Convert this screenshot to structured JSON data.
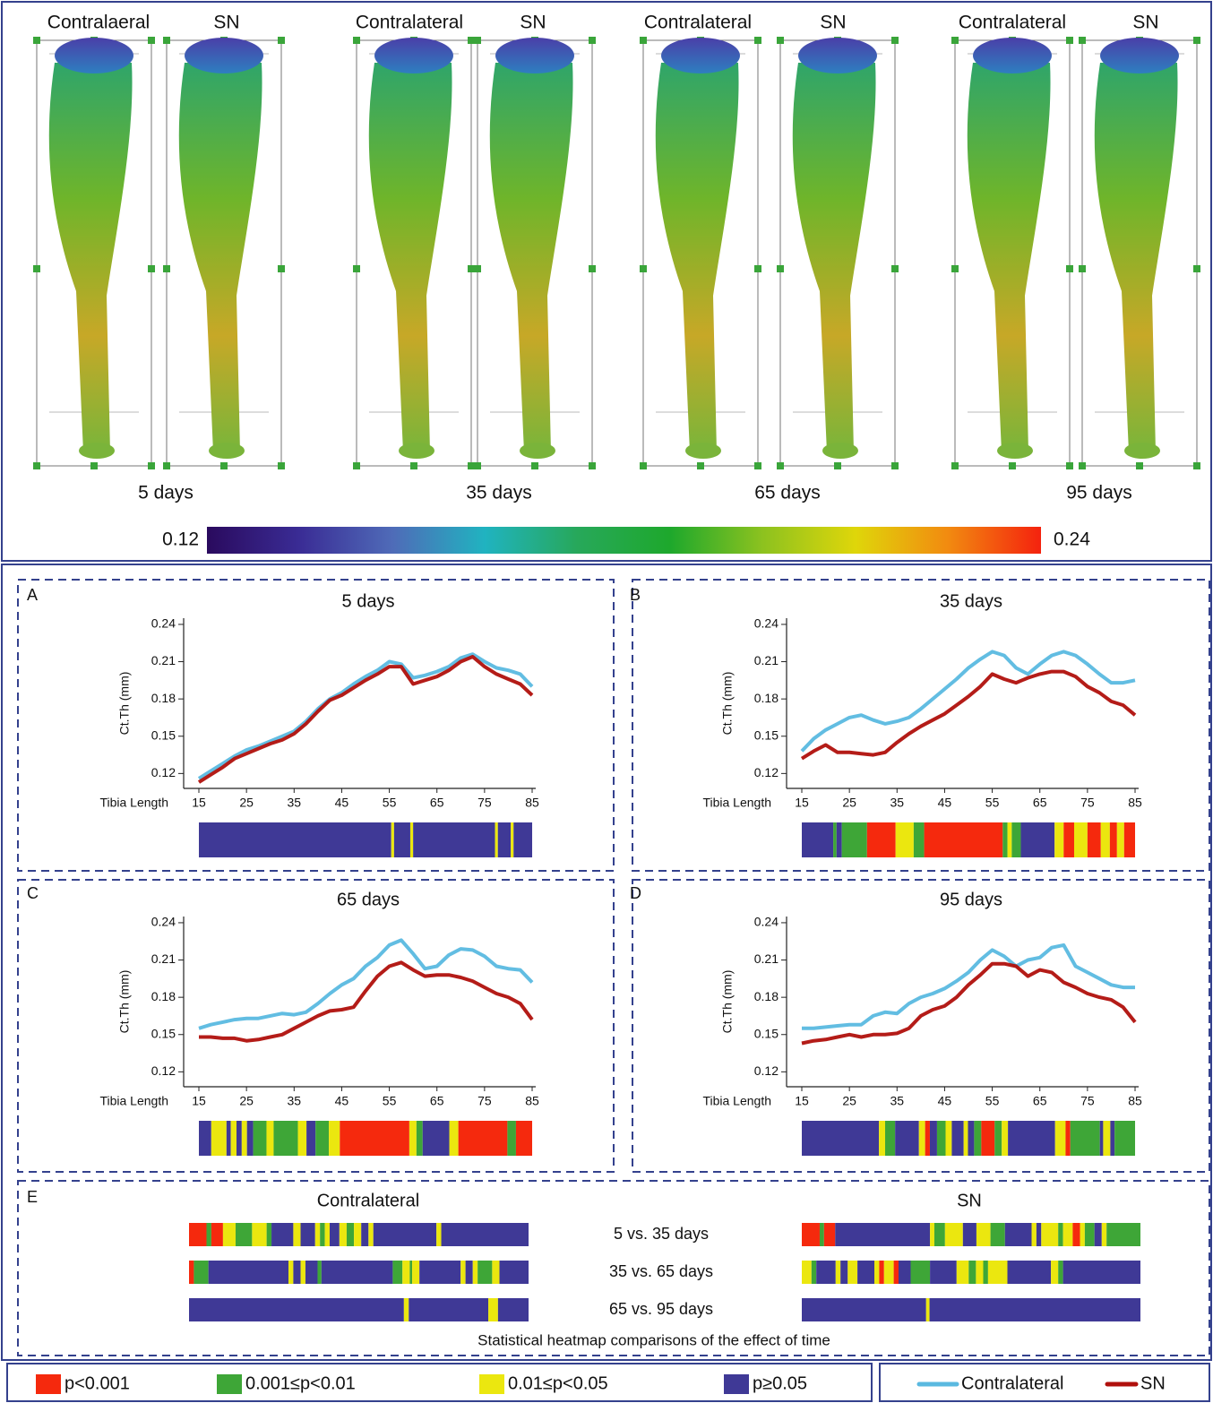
{
  "renderings": {
    "panels": [
      {
        "labels": [
          "Contralaeral",
          "SN"
        ],
        "caption": "5 days"
      },
      {
        "labels": [
          "Contralateral",
          "SN"
        ],
        "caption": "35 days"
      },
      {
        "labels": [
          "Contralateral",
          "SN"
        ],
        "caption": "65 days"
      },
      {
        "labels": [
          "Contralateral",
          "SN"
        ],
        "caption": "95 days"
      }
    ]
  },
  "colorbar": {
    "clim": [
      0.12,
      0.24
    ],
    "ticks": [
      0.12,
      0.24
    ],
    "colors": [
      "#2a0a5e",
      "#3a2c95",
      "#4f6bb8",
      "#20b3c0",
      "#27a85a",
      "#1ea82c",
      "#8dc21f",
      "#dfd60a",
      "#f28a10",
      "#f4220e"
    ]
  },
  "legend": {
    "lines": [
      {
        "name": "Contralateral",
        "color": "#5ab9e0"
      },
      {
        "name": "SN",
        "color": "#b0100c"
      }
    ],
    "significance": [
      {
        "label": "p<0.001",
        "color": "#f5290d"
      },
      {
        "label": "0.001≤p<0.01",
        "color": "#3ea637"
      },
      {
        "label": "0.01≤p<0.05",
        "color": "#ebe70f"
      },
      {
        "label": "p≥0.05",
        "color": "#3f3996"
      }
    ]
  },
  "chart_data": [
    {
      "type": "line",
      "panel": "A",
      "title": "5 days",
      "ylabel": "Ct.Th (mm)",
      "xlabel": "Tibia Length",
      "x": [
        15,
        17.5,
        20,
        22.5,
        25,
        27.5,
        30,
        32.5,
        35,
        37.5,
        40,
        42.5,
        45,
        47.5,
        50,
        52.5,
        55,
        57.5,
        60,
        62.5,
        65,
        67.5,
        70,
        72.5,
        75,
        77.5,
        80,
        82.5,
        85
      ],
      "xlim": [
        11.8,
        85.75
      ],
      "xticks": [
        15,
        25,
        35,
        45,
        55,
        65,
        75,
        85
      ],
      "ylim": [
        0.108,
        0.245
      ],
      "yticks": [
        0.12,
        0.15,
        0.18,
        0.21,
        0.24
      ],
      "grid": false,
      "series": [
        {
          "values": [
            0.116,
            0.122,
            0.128,
            0.134,
            0.139,
            0.142,
            0.146,
            0.15,
            0.154,
            0.162,
            0.172,
            0.18,
            0.185,
            0.192,
            0.198,
            0.203,
            0.21,
            0.208,
            0.197,
            0.199,
            0.202,
            0.206,
            0.213,
            0.216,
            0.21,
            0.205,
            0.203,
            0.2,
            0.19
          ]
        },
        {
          "values": [
            0.113,
            0.119,
            0.125,
            0.132,
            0.136,
            0.14,
            0.144,
            0.147,
            0.152,
            0.16,
            0.17,
            0.179,
            0.183,
            0.189,
            0.195,
            0.2,
            0.206,
            0.206,
            0.192,
            0.195,
            0.198,
            0.203,
            0.21,
            0.214,
            0.206,
            0.2,
            0.196,
            0.192,
            0.183
          ]
        }
      ],
      "heatmap": {
        "edges": [
          15,
          55.4,
          56,
          59.4,
          60,
          77.2,
          77.8,
          80.5,
          81.1,
          85
        ],
        "colors": [
          "#3f3996",
          "#ebe70f",
          "#3f3996",
          "#ebe70f",
          "#3f3996",
          "#ebe70f",
          "#3f3996",
          "#ebe70f",
          "#3f3996"
        ]
      }
    },
    {
      "type": "line",
      "panel": "B",
      "title": "35 days",
      "ylabel": "Ct.Th (mm)",
      "xlabel": "Tibia Length",
      "x": [
        15,
        17.5,
        20,
        22.5,
        25,
        27.5,
        30,
        32.5,
        35,
        37.5,
        40,
        42.5,
        45,
        47.5,
        50,
        52.5,
        55,
        57.5,
        60,
        62.5,
        65,
        67.5,
        70,
        72.5,
        75,
        77.5,
        80,
        82.5,
        85
      ],
      "xlim": [
        11.8,
        85.75
      ],
      "xticks": [
        15,
        25,
        35,
        45,
        55,
        65,
        75,
        85
      ],
      "ylim": [
        0.108,
        0.245
      ],
      "yticks": [
        0.12,
        0.15,
        0.18,
        0.21,
        0.24
      ],
      "grid": false,
      "series": [
        {
          "values": [
            0.138,
            0.148,
            0.155,
            0.16,
            0.165,
            0.167,
            0.163,
            0.16,
            0.162,
            0.165,
            0.172,
            0.18,
            0.188,
            0.196,
            0.205,
            0.212,
            0.218,
            0.215,
            0.205,
            0.2,
            0.208,
            0.215,
            0.218,
            0.215,
            0.208,
            0.2,
            0.193,
            0.193,
            0.195
          ]
        },
        {
          "values": [
            0.132,
            0.138,
            0.143,
            0.137,
            0.137,
            0.136,
            0.135,
            0.137,
            0.145,
            0.152,
            0.158,
            0.163,
            0.168,
            0.175,
            0.182,
            0.19,
            0.2,
            0.196,
            0.193,
            0.197,
            0.2,
            0.202,
            0.202,
            0.198,
            0.19,
            0.185,
            0.178,
            0.175,
            0.167
          ]
        }
      ],
      "heatmap": {
        "edges": [
          15,
          21.6,
          22.3,
          23.4,
          28.7,
          34.7,
          38.5,
          40.7,
          57.2,
          58.2,
          59.1,
          61.0,
          68.1,
          70.0,
          72.2,
          75.0,
          77.8,
          79.7,
          81.2,
          82.7,
          85
        ],
        "colors": [
          "#3f3996",
          "#3ea637",
          "#3f3996",
          "#3ea637",
          "#f5290d",
          "#ebe70f",
          "#3ea637",
          "#f5290d",
          "#3ea637",
          "#ebe70f",
          "#3ea637",
          "#3f3996",
          "#ebe70f",
          "#f5290d",
          "#ebe70f",
          "#f5290d",
          "#ebe70f",
          "#f5290d",
          "#ebe70f",
          "#f5290d"
        ]
      }
    },
    {
      "type": "line",
      "panel": "C",
      "title": "65 days",
      "ylabel": "Ct.Th (mm)",
      "xlabel": "Tibia Length",
      "x": [
        15,
        17.5,
        20,
        22.5,
        25,
        27.5,
        30,
        32.5,
        35,
        37.5,
        40,
        42.5,
        45,
        47.5,
        50,
        52.5,
        55,
        57.5,
        60,
        62.5,
        65,
        67.5,
        70,
        72.5,
        75,
        77.5,
        80,
        82.5,
        85
      ],
      "xlim": [
        11.8,
        85.75
      ],
      "xticks": [
        15,
        25,
        35,
        45,
        55,
        65,
        75,
        85
      ],
      "ylim": [
        0.108,
        0.245
      ],
      "yticks": [
        0.12,
        0.15,
        0.18,
        0.21,
        0.24
      ],
      "grid": false,
      "series": [
        {
          "values": [
            0.155,
            0.158,
            0.16,
            0.162,
            0.163,
            0.163,
            0.165,
            0.167,
            0.166,
            0.168,
            0.175,
            0.183,
            0.19,
            0.195,
            0.205,
            0.212,
            0.222,
            0.226,
            0.215,
            0.203,
            0.205,
            0.214,
            0.219,
            0.218,
            0.213,
            0.205,
            0.203,
            0.202,
            0.192
          ]
        },
        {
          "values": [
            0.148,
            0.148,
            0.147,
            0.147,
            0.145,
            0.146,
            0.148,
            0.15,
            0.155,
            0.16,
            0.165,
            0.169,
            0.17,
            0.172,
            0.185,
            0.197,
            0.205,
            0.208,
            0.202,
            0.197,
            0.198,
            0.198,
            0.196,
            0.193,
            0.188,
            0.183,
            0.18,
            0.175,
            0.162
          ]
        }
      ],
      "heatmap": {
        "edges": [
          15,
          17.6,
          20.8,
          21.7,
          22.9,
          24.0,
          25.1,
          26.4,
          29.2,
          30.7,
          35.8,
          37.6,
          39.5,
          42.3,
          44.6,
          59.2,
          60.7,
          62.0,
          67.6,
          69.5,
          79.8,
          81.6,
          85
        ],
        "colors": [
          "#3f3996",
          "#ebe70f",
          "#3f3996",
          "#ebe70f",
          "#3f3996",
          "#ebe70f",
          "#3f3996",
          "#3ea637",
          "#ebe70f",
          "#3ea637",
          "#ebe70f",
          "#3f3996",
          "#3ea637",
          "#ebe70f",
          "#f5290d",
          "#ebe70f",
          "#3ea637",
          "#3f3996",
          "#ebe70f",
          "#f5290d",
          "#3ea637",
          "#f5290d"
        ]
      }
    },
    {
      "type": "line",
      "panel": "D",
      "title": "95 days",
      "ylabel": "Ct.Th (mm)",
      "xlabel": "Tibia Length",
      "x": [
        15,
        17.5,
        20,
        22.5,
        25,
        27.5,
        30,
        32.5,
        35,
        37.5,
        40,
        42.5,
        45,
        47.5,
        50,
        52.5,
        55,
        57.5,
        60,
        62.5,
        65,
        67.5,
        70,
        72.5,
        75,
        77.5,
        80,
        82.5,
        85
      ],
      "xlim": [
        11.8,
        85.75
      ],
      "xticks": [
        15,
        25,
        35,
        45,
        55,
        65,
        75,
        85
      ],
      "ylim": [
        0.108,
        0.245
      ],
      "yticks": [
        0.12,
        0.15,
        0.18,
        0.21,
        0.24
      ],
      "grid": false,
      "series": [
        {
          "values": [
            0.155,
            0.155,
            0.156,
            0.157,
            0.158,
            0.158,
            0.165,
            0.168,
            0.167,
            0.175,
            0.18,
            0.183,
            0.187,
            0.193,
            0.2,
            0.21,
            0.218,
            0.213,
            0.205,
            0.21,
            0.212,
            0.22,
            0.222,
            0.205,
            0.2,
            0.195,
            0.19,
            0.188,
            0.188
          ]
        },
        {
          "values": [
            0.143,
            0.145,
            0.146,
            0.148,
            0.15,
            0.148,
            0.15,
            0.15,
            0.151,
            0.155,
            0.165,
            0.17,
            0.173,
            0.18,
            0.19,
            0.198,
            0.207,
            0.207,
            0.205,
            0.197,
            0.202,
            0.2,
            0.192,
            0.188,
            0.183,
            0.18,
            0.178,
            0.172,
            0.16
          ]
        }
      ],
      "heatmap": {
        "edges": [
          15,
          31.2,
          32.5,
          34.6,
          39.6,
          40.9,
          41.9,
          43.4,
          45.2,
          46.5,
          49.0,
          49.9,
          51.2,
          52.7,
          55.5,
          57.0,
          58.3,
          68.2,
          70.4,
          71.4,
          77.6,
          78.3,
          79.8,
          80.7,
          85
        ],
        "colors": [
          "#3f3996",
          "#ebe70f",
          "#3ea637",
          "#3f3996",
          "#ebe70f",
          "#f5290d",
          "#3f3996",
          "#3ea637",
          "#ebe70f",
          "#3f3996",
          "#ebe70f",
          "#3f3996",
          "#3ea637",
          "#f5290d",
          "#3ea637",
          "#ebe70f",
          "#3f3996",
          "#ebe70f",
          "#f5290d",
          "#3ea637",
          "#3f3996",
          "#ebe70f",
          "#3f3996",
          "#3ea637"
        ]
      }
    }
  ],
  "comparisons": {
    "panel": "E",
    "caption": "Statistical heatmap comparisons of the effect of time",
    "xlim": [
      15,
      85
    ],
    "row_labels": [
      "5 vs. 35 days",
      "35 vs. 65 days",
      "65 vs. 95 days"
    ],
    "groups": [
      {
        "title": "Contralateral",
        "rows": [
          {
            "edges": [
              15,
              18.6,
              19.6,
              22.0,
              24.6,
              28.0,
              31.0,
              32.0,
              36.5,
              38.0,
              41.0,
              42.0,
              43.0,
              44.0,
              46.0,
              47.5,
              49.0,
              50.5,
              52.0,
              53.0,
              66.0,
              67.0,
              85
            ],
            "colors": [
              "#f5290d",
              "#3ea637",
              "#f5290d",
              "#ebe70f",
              "#3ea637",
              "#ebe70f",
              "#3ea637",
              "#3f3996",
              "#ebe70f",
              "#3f3996",
              "#ebe70f",
              "#3ea637",
              "#ebe70f",
              "#3f3996",
              "#ebe70f",
              "#3ea637",
              "#ebe70f",
              "#3f3996",
              "#ebe70f",
              "#3f3996",
              "#ebe70f",
              "#3f3996"
            ]
          },
          {
            "edges": [
              15,
              16,
              19,
              35.5,
              36.5,
              38,
              39,
              41.5,
              42.3,
              57,
              59,
              60.5,
              61,
              62.5,
              71,
              72,
              73.5,
              74.5,
              77.5,
              79,
              85
            ],
            "colors": [
              "#f5290d",
              "#3ea637",
              "#3f3996",
              "#ebe70f",
              "#3f3996",
              "#ebe70f",
              "#3f3996",
              "#3ea637",
              "#3f3996",
              "#3ea637",
              "#ebe70f",
              "#3ea637",
              "#ebe70f",
              "#3f3996",
              "#ebe70f",
              "#3f3996",
              "#ebe70f",
              "#3ea637",
              "#ebe70f",
              "#3f3996"
            ]
          },
          {
            "edges": [
              15,
              59.3,
              60.3,
              76.7,
              78.7,
              85
            ],
            "colors": [
              "#3f3996",
              "#ebe70f",
              "#3f3996",
              "#ebe70f",
              "#3f3996"
            ]
          }
        ]
      },
      {
        "title": "SN",
        "rows": [
          {
            "edges": [
              15,
              18.7,
              19.6,
              21.9,
              41.5,
              42.4,
              44.6,
              48.3,
              51.1,
              54.0,
              57.0,
              62.5,
              63.5,
              64.5,
              68,
              69,
              71,
              72.5,
              73.5,
              75.5,
              77,
              78,
              85
            ],
            "colors": [
              "#f5290d",
              "#3ea637",
              "#f5290d",
              "#3f3996",
              "#ebe70f",
              "#3ea637",
              "#ebe70f",
              "#3f3996",
              "#ebe70f",
              "#3ea637",
              "#3f3996",
              "#ebe70f",
              "#3f3996",
              "#ebe70f",
              "#3ea637",
              "#ebe70f",
              "#f5290d",
              "#ebe70f",
              "#3ea637",
              "#3f3996",
              "#ebe70f",
              "#3ea637"
            ]
          },
          {
            "edges": [
              15,
              17,
              18,
              22,
              23,
              24.5,
              26.5,
              30,
              31,
              32,
              34,
              35,
              37.5,
              41.5,
              47,
              49.5,
              51,
              52.5,
              53.5,
              57.5,
              66.5,
              68,
              69,
              85
            ],
            "colors": [
              "#ebe70f",
              "#3ea637",
              "#3f3996",
              "#ebe70f",
              "#3f3996",
              "#ebe70f",
              "#3f3996",
              "#ebe70f",
              "#f5290d",
              "#ebe70f",
              "#f5290d",
              "#3f3996",
              "#3ea637",
              "#3f3996",
              "#ebe70f",
              "#3ea637",
              "#ebe70f",
              "#3ea637",
              "#ebe70f",
              "#3f3996",
              "#ebe70f",
              "#3ea637",
              "#3f3996"
            ]
          },
          {
            "edges": [
              15,
              40.7,
              41.4,
              85
            ],
            "colors": [
              "#3f3996",
              "#ebe70f",
              "#3f3996"
            ]
          }
        ]
      }
    ]
  }
}
